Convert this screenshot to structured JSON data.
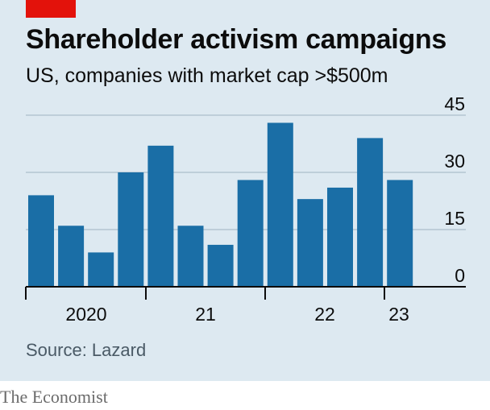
{
  "header": {
    "title": "Shareholder activism campaigns",
    "subtitle": "US, companies with market cap >$500m"
  },
  "footer": {
    "source": "Source: Lazard",
    "brand": "The Economist"
  },
  "colors": {
    "bar": "#1a6ea6",
    "panel": "#dde9f1",
    "accent": "#e3120b"
  },
  "chart_data": {
    "type": "bar",
    "x": [
      "2020 Q1",
      "2020 Q2",
      "2020 Q3",
      "2020 Q4",
      "2021 Q1",
      "2021 Q2",
      "2021 Q3",
      "2021 Q4",
      "2022 Q1",
      "2022 Q2",
      "2022 Q3",
      "2022 Q4",
      "2023 Q1"
    ],
    "values": [
      24,
      16,
      9,
      30,
      37,
      16,
      11,
      28,
      43,
      23,
      26,
      39,
      28
    ],
    "year_labels": [
      "2020",
      "21",
      "22",
      "23"
    ],
    "y_ticks": [
      0,
      15,
      30,
      45
    ],
    "ylim": [
      0,
      45
    ],
    "y_axis_position": "right",
    "grid": true
  }
}
